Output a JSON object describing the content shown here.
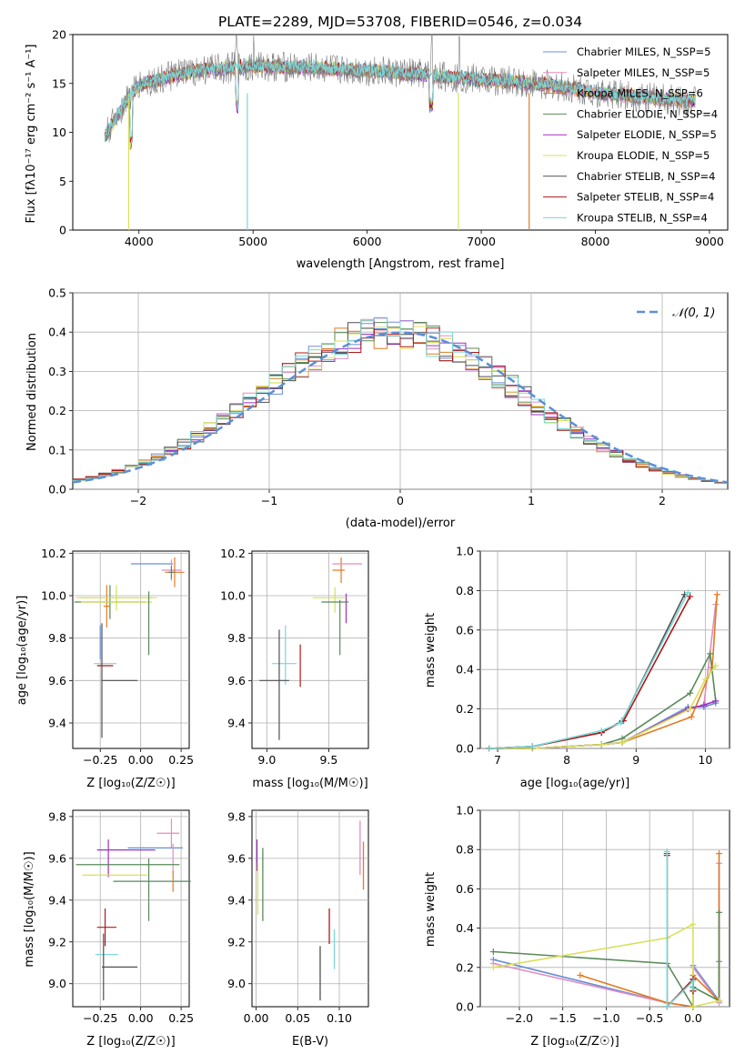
{
  "colors": {
    "c1": "#6a8fd8",
    "c2": "#e08ec0",
    "c3": "#e07b22",
    "c4": "#5a8a5a",
    "c5": "#a030c0",
    "c6": "#d8e05a",
    "c7": "#505050",
    "c8": "#b01818",
    "c9": "#7ad8d8"
  },
  "chart_data": [
    {
      "type": "line",
      "title": "PLATE=2289, MJD=53708, FIBERID=0546, z=0.034",
      "xlabel": "wavelength [Angstrom, rest frame]",
      "ylabel": "Flux [fλ10⁻¹⁷ erg cm⁻² s⁻¹ A⁻¹]",
      "xlim": [
        3420,
        9160
      ],
      "ylim": [
        0,
        20
      ],
      "xticks": [
        "4000",
        "5000",
        "6000",
        "7000",
        "8000",
        "9000"
      ],
      "yticks": [
        "0",
        "5",
        "10",
        "15",
        "20"
      ],
      "grid": false,
      "legend_position": "top-right",
      "legend": [
        "Chabrier MILES, N_SSP=5",
        "Salpeter MILES, N_SSP=5",
        "Kroupa MILES, N_SSP=6",
        "Chabrier ELODIE, N_SSP=4",
        "Salpeter ELODIE, N_SSP=5",
        "Kroupa ELODIE, N_SSP=5",
        "Chabrier STELIB, N_SSP=4",
        "Salpeter STELIB, N_SSP=4",
        "Kroupa STELIB, N_SSP=4"
      ],
      "spectrum_continuum": [
        [
          3700,
          9.5
        ],
        [
          3800,
          11.5
        ],
        [
          3900,
          13.5
        ],
        [
          4000,
          14.8
        ],
        [
          4200,
          15.5
        ],
        [
          4500,
          16.3
        ],
        [
          5000,
          16.8
        ],
        [
          5500,
          16.6
        ],
        [
          6000,
          16.3
        ],
        [
          6500,
          15.9
        ],
        [
          7000,
          15.4
        ],
        [
          7500,
          15.0
        ],
        [
          8000,
          14.1
        ],
        [
          8500,
          13.5
        ],
        [
          8850,
          13.2
        ]
      ]
    },
    {
      "type": "line",
      "xlabel": "(data-model)/error",
      "ylabel": "Normed distribution",
      "xlim": [
        -2.5,
        2.5
      ],
      "ylim": [
        0,
        0.5
      ],
      "xticks": [
        "−2",
        "−1",
        "0",
        "1",
        "2"
      ],
      "yticks": [
        "0.0",
        "0.1",
        "0.2",
        "0.3",
        "0.4",
        "0.5"
      ],
      "grid": true,
      "legend_position": "top-right",
      "legend": [
        "𝒩(0, 1)"
      ]
    },
    {
      "type": "scatter",
      "xlabel": "Z [log₁₀(Z/Z☉)]",
      "ylabel": "age  [log₁₀(age/yr)]",
      "xlim": [
        -0.42,
        0.3
      ],
      "ylim": [
        9.28,
        10.21
      ],
      "xticks": [
        "−0.25",
        "0.00",
        "0.25"
      ],
      "yticks": [
        "9.4",
        "9.6",
        "9.8",
        "10.0",
        "10.2"
      ],
      "grid": true,
      "points": [
        {
          "x": 0.07,
          "xerr": 0.13,
          "y": 10.15,
          "yerr": 0.0
        },
        {
          "x": 0.19,
          "xerr": 0.06,
          "y": 10.12,
          "yerr": 0.05
        },
        {
          "x": 0.21,
          "xerr": 0.06,
          "y": 10.11,
          "yerr": 0.07
        },
        {
          "x": 0.19,
          "xerr": 0.02,
          "y": 10.11,
          "yerr": 0.03
        },
        {
          "x": -0.15,
          "xerr": 0.25,
          "y": 9.99,
          "yerr": 0.06
        },
        {
          "x": -0.19,
          "xerr": 0.22,
          "y": 9.97,
          "yerr": 0.08
        },
        {
          "x": -0.21,
          "xerr": 0.02,
          "y": 9.95,
          "yerr": 0.1
        },
        {
          "x": -0.15,
          "xerr": 0.22,
          "y": 9.99,
          "yerr": 0.0
        },
        {
          "x": -0.15,
          "xerr": 0.22,
          "y": 9.97,
          "yerr": 0.0
        },
        {
          "x": 0.05,
          "xerr": 0.0,
          "y": 9.87,
          "yerr": 0.15
        },
        {
          "x": -0.25,
          "xerr": 0.0,
          "y": 9.78,
          "yerr": 0.08
        },
        {
          "x": -0.22,
          "xerr": 0.07,
          "y": 9.68,
          "yerr": 0.0
        },
        {
          "x": -0.22,
          "xerr": 0.05,
          "y": 9.67,
          "yerr": 0.0
        },
        {
          "x": -0.24,
          "xerr": 0.0,
          "y": 9.6,
          "yerr": 0.27
        },
        {
          "x": -0.13,
          "xerr": 0.11,
          "y": 9.6,
          "yerr": 0.0
        }
      ]
    },
    {
      "type": "scatter",
      "xlabel": "mass [log₁₀(M/M☉)]",
      "xlim": [
        8.88,
        9.82
      ],
      "ylim": [
        9.28,
        10.21
      ],
      "xticks": [
        "9.0",
        "9.5"
      ],
      "yticks": [
        "9.4",
        "9.6",
        "9.8",
        "10.0",
        "10.2"
      ],
      "grid": true,
      "points": [
        {
          "x": 9.6,
          "xerr": 0.0,
          "y": 10.12,
          "yerr": 0.06
        },
        {
          "x": 9.65,
          "xerr": 0.12,
          "y": 10.15,
          "yerr": 0.0
        },
        {
          "x": 9.52,
          "xerr": 0.0,
          "y": 10.15,
          "yerr": 0.0
        },
        {
          "x": 9.58,
          "xerr": 0.05,
          "y": 10.12,
          "yerr": 0.0
        },
        {
          "x": 9.64,
          "xerr": 0.0,
          "y": 9.94,
          "yerr": 0.07
        },
        {
          "x": 9.5,
          "xerr": 0.13,
          "y": 9.99,
          "yerr": 0.0
        },
        {
          "x": 9.55,
          "xerr": 0.0,
          "y": 9.98,
          "yerr": 0.06
        },
        {
          "x": 9.59,
          "xerr": 0.0,
          "y": 9.85,
          "yerr": 0.13
        },
        {
          "x": 9.55,
          "xerr": 0.11,
          "y": 9.97,
          "yerr": 0.0
        },
        {
          "x": 9.14,
          "xerr": 0.1,
          "y": 9.68,
          "yerr": 0.0
        },
        {
          "x": 9.27,
          "xerr": 0.0,
          "y": 9.67,
          "yerr": 0.1
        },
        {
          "x": 9.15,
          "xerr": 0.0,
          "y": 9.72,
          "yerr": 0.14
        },
        {
          "x": 9.1,
          "xerr": 0.0,
          "y": 9.58,
          "yerr": 0.26
        },
        {
          "x": 9.06,
          "xerr": 0.12,
          "y": 9.6,
          "yerr": 0.0
        }
      ]
    },
    {
      "type": "line",
      "xlabel": "age  [log₁₀(age/yr)]",
      "ylabel": "mass weight",
      "xlim": [
        6.75,
        10.35
      ],
      "ylim": [
        0,
        1
      ],
      "xticks": [
        "7",
        "8",
        "9",
        "10"
      ],
      "yticks": [
        "0.0",
        "0.2",
        "0.4",
        "0.6",
        "0.8",
        "1.0"
      ],
      "grid": true,
      "series": [
        {
          "color": "c1",
          "x": [
            6.88,
            7.5,
            8.5,
            8.8,
            9.75,
            9.98,
            10.15
          ],
          "y": [
            0.0,
            0.0,
            0.02,
            0.03,
            0.21,
            0.21,
            0.23
          ]
        },
        {
          "color": "c2",
          "x": [
            6.88,
            7.5,
            8.5,
            8.8,
            9.75,
            9.98,
            10.15
          ],
          "y": [
            0.0,
            0.0,
            0.02,
            0.03,
            0.2,
            0.22,
            0.73
          ]
        },
        {
          "color": "c3",
          "x": [
            6.88,
            7.5,
            8.5,
            8.8,
            9.8,
            10.1,
            10.17
          ],
          "y": [
            0.0,
            0.0,
            0.02,
            0.03,
            0.16,
            0.41,
            0.78
          ]
        },
        {
          "color": "c4",
          "x": [
            6.88,
            7.5,
            8.5,
            8.8,
            9.78,
            10.07,
            10.15
          ],
          "y": [
            0.0,
            0.0,
            0.02,
            0.05,
            0.28,
            0.48,
            0.24
          ]
        },
        {
          "color": "c5",
          "x": [
            6.88,
            7.5,
            8.5,
            8.8,
            9.75,
            9.98,
            10.15
          ],
          "y": [
            0.0,
            0.0,
            0.02,
            0.03,
            0.2,
            0.22,
            0.24
          ]
        },
        {
          "color": "c6",
          "x": [
            6.88,
            7.5,
            8.5,
            8.8,
            9.78,
            10.0,
            10.15
          ],
          "y": [
            0.0,
            0.0,
            0.02,
            0.03,
            0.2,
            0.35,
            0.42
          ]
        },
        {
          "color": "c7",
          "x": [
            6.88,
            7.5,
            8.5,
            8.8,
            9.7
          ],
          "y": [
            0.0,
            0.01,
            0.08,
            0.14,
            0.78
          ]
        },
        {
          "color": "c8",
          "x": [
            6.88,
            7.5,
            8.5,
            8.82,
            9.78
          ],
          "y": [
            0.0,
            0.01,
            0.08,
            0.14,
            0.77
          ]
        },
        {
          "color": "c9",
          "x": [
            6.88,
            7.5,
            8.5,
            8.78,
            9.75
          ],
          "y": [
            0.0,
            0.01,
            0.09,
            0.13,
            0.79
          ]
        }
      ]
    },
    {
      "type": "scatter",
      "xlabel": "Z [log₁₀(Z/Z☉)]",
      "ylabel": "mass [log₁₀(M/M☉)]",
      "xlim": [
        -0.42,
        0.3
      ],
      "ylim": [
        8.89,
        9.83
      ],
      "xticks": [
        "−0.25",
        "0.00",
        "0.25"
      ],
      "yticks": [
        "9.0",
        "9.2",
        "9.4",
        "9.6",
        "9.8"
      ],
      "grid": true,
      "points": [
        {
          "x": 0.19,
          "xerr": 0.0,
          "y": 9.72,
          "yerr": 0.07
        },
        {
          "x": 0.17,
          "xerr": 0.07,
          "y": 9.72,
          "yerr": 0.0
        },
        {
          "x": 0.09,
          "xerr": 0.17,
          "y": 9.65,
          "yerr": 0.0
        },
        {
          "x": 0.2,
          "xerr": 0.0,
          "y": 9.6,
          "yerr": 0.07
        },
        {
          "x": -0.09,
          "xerr": 0.18,
          "y": 9.64,
          "yerr": 0.0
        },
        {
          "x": -0.2,
          "xerr": 0.0,
          "y": 9.6,
          "yerr": 0.09
        },
        {
          "x": 0.07,
          "xerr": 0.24,
          "y": 9.49,
          "yerr": 0.0
        },
        {
          "x": 0.2,
          "xerr": 0.0,
          "y": 9.49,
          "yerr": 0.05
        },
        {
          "x": -0.08,
          "xerr": 0.32,
          "y": 9.57,
          "yerr": 0.0
        },
        {
          "x": 0.05,
          "xerr": 0.0,
          "y": 9.45,
          "yerr": 0.15
        },
        {
          "x": -0.16,
          "xerr": 0.2,
          "y": 9.52,
          "yerr": 0.0
        },
        {
          "x": -0.22,
          "xerr": 0.0,
          "y": 9.27,
          "yerr": 0.09
        },
        {
          "x": -0.21,
          "xerr": 0.06,
          "y": 9.27,
          "yerr": 0.0
        },
        {
          "x": -0.21,
          "xerr": 0.07,
          "y": 9.14,
          "yerr": 0.0
        },
        {
          "x": -0.23,
          "xerr": 0.0,
          "y": 9.08,
          "yerr": 0.16
        },
        {
          "x": -0.13,
          "xerr": 0.11,
          "y": 9.08,
          "yerr": 0.0
        }
      ]
    },
    {
      "type": "scatter",
      "xlabel": "E(B-V)",
      "xlim": [
        -0.005,
        0.135
      ],
      "ylim": [
        8.89,
        9.83
      ],
      "xticks": [
        "0.00",
        "0.05",
        "0.10"
      ],
      "yticks": [
        "9.0",
        "9.2",
        "9.4",
        "9.6",
        "9.8"
      ],
      "grid": true,
      "segments": [
        {
          "color": "c5",
          "x": 0.001,
          "y0": 9.54,
          "y1": 9.69
        },
        {
          "color": "c6",
          "x": 0.002,
          "y0": 9.33,
          "y1": 9.58
        },
        {
          "color": "c4",
          "x": 0.008,
          "y0": 9.3,
          "y1": 9.65
        },
        {
          "color": "c2",
          "x": 0.125,
          "y0": 9.52,
          "y1": 9.78
        },
        {
          "color": "c3",
          "x": 0.129,
          "y0": 9.45,
          "y1": 9.68
        },
        {
          "color": "c8",
          "x": 0.088,
          "y0": 9.19,
          "y1": 9.36
        },
        {
          "color": "c9",
          "x": 0.094,
          "y0": 9.07,
          "y1": 9.26
        },
        {
          "color": "c7",
          "x": 0.077,
          "y0": 8.92,
          "y1": 9.18
        }
      ]
    },
    {
      "type": "line",
      "xlabel": "Z [log₁₀(Z/Z☉)]",
      "ylabel": "mass weight",
      "xlim": [
        -2.45,
        0.42
      ],
      "ylim": [
        0,
        1
      ],
      "xticks": [
        "−2.0",
        "−1.5",
        "−1.0",
        "−0.5",
        "0.0"
      ],
      "yticks": [
        "0.0",
        "0.2",
        "0.4",
        "0.6",
        "0.8",
        "1.0"
      ],
      "grid": true,
      "series": [
        {
          "color": "c1",
          "x": [
            -2.3,
            -0.3,
            0.0,
            0.0,
            0.3,
            0.3
          ],
          "y": [
            0.24,
            0.02,
            0.0,
            0.21,
            0.03,
            0.23
          ]
        },
        {
          "color": "c2",
          "x": [
            -2.3,
            -0.3,
            0.0,
            0.0,
            0.3,
            0.3
          ],
          "y": [
            0.22,
            0.02,
            0.0,
            0.2,
            0.02,
            0.73
          ]
        },
        {
          "color": "c3",
          "x": [
            -1.3,
            -0.3,
            0.0,
            0.0,
            0.3,
            0.3
          ],
          "y": [
            0.16,
            0.02,
            0.0,
            0.16,
            0.03,
            0.78
          ]
        },
        {
          "color": "c4",
          "x": [
            -2.3,
            -0.3,
            0.0,
            0.0,
            0.3,
            0.3
          ],
          "y": [
            0.28,
            0.22,
            0.0,
            0.1,
            0.03,
            0.48
          ]
        },
        {
          "color": "c6",
          "x": [
            -2.3,
            -0.3,
            0.0,
            0.0,
            0.3
          ],
          "y": [
            0.2,
            0.35,
            0.42,
            0.0,
            0.03
          ]
        },
        {
          "color": "c7",
          "x": [
            -0.3,
            -0.3,
            0.0,
            0.0
          ],
          "y": [
            0.78,
            0.0,
            0.14,
            0.08
          ]
        },
        {
          "color": "c8",
          "x": [
            -0.3,
            -0.3,
            0.0,
            0.0
          ],
          "y": [
            0.77,
            0.0,
            0.14,
            0.08
          ]
        },
        {
          "color": "c9",
          "x": [
            -0.3,
            -0.3,
            0.0,
            0.0
          ],
          "y": [
            0.79,
            0.0,
            0.13,
            0.09
          ]
        }
      ]
    }
  ]
}
